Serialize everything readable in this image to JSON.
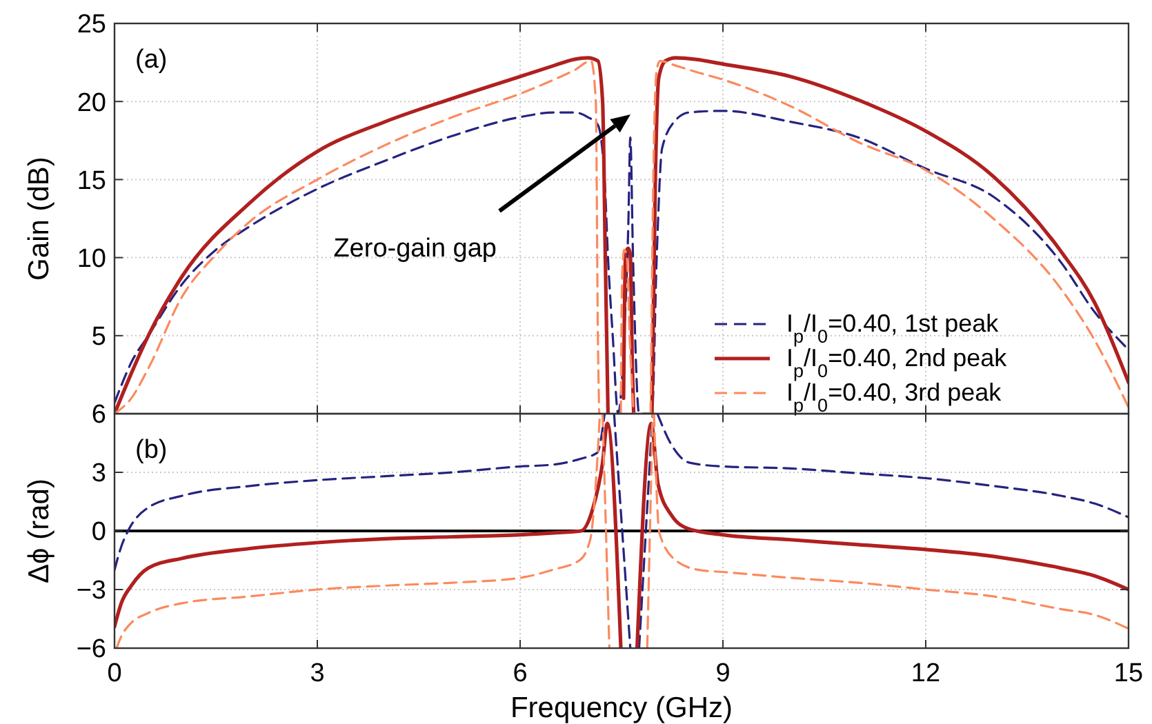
{
  "chart_data": [
    {
      "type": "line",
      "ylabel": "Gain (dB)",
      "xlim": [
        0,
        15
      ],
      "xticks": [
        0,
        3,
        6,
        9,
        12,
        15
      ],
      "ylim": [
        0,
        25
      ],
      "yticks": [
        {
          "value": 0,
          "label": null
        },
        5,
        10,
        15,
        20,
        25
      ],
      "tick_labels": "y",
      "grid": true,
      "legend": "bottom right",
      "annotations": [
        "(a)",
        "Zero-gain gap"
      ],
      "series": [
        {
          "name": "I$_{p}$/I$_{0}$=0.40, 1st peak",
          "color": "#25237f",
          "line_style": "dashed",
          "x": [
            0,
            0.1,
            0.25,
            0.5,
            1,
            1.5,
            2,
            3,
            4,
            5,
            6,
            6.5,
            6.8,
            7.0,
            7.15,
            7.25,
            7.3,
            7.37,
            7.45,
            7.55,
            7.6,
            7.63,
            7.67,
            7.76,
            7.95,
            8.02,
            8.1,
            8.3,
            8.5,
            9,
            10,
            11,
            12,
            13,
            14,
            14.5,
            15
          ],
          "values": [
            0.7,
            1.8,
            3.3,
            5.0,
            8.3,
            10.5,
            12.0,
            14.4,
            16.2,
            17.8,
            19.0,
            19.3,
            19.3,
            19.0,
            18.5,
            15,
            10,
            5,
            0,
            6,
            12,
            17.7,
            10,
            0,
            0,
            10,
            17,
            18.8,
            19.3,
            19.4,
            18.7,
            17.7,
            15.7,
            13.9,
            9.7,
            6.5,
            4.1
          ]
        },
        {
          "name": "I$_{p}$/I$_{0}$=0.40, 2nd peak",
          "color": "#b0201f",
          "line_style": "solid",
          "x": [
            0,
            0.25,
            0.5,
            1,
            2,
            3,
            4,
            5,
            6,
            6.5,
            6.8,
            7.0,
            7.15,
            7.22,
            7.26,
            7.3,
            7.4,
            7.53,
            7.56,
            7.6,
            7.63,
            7.66,
            7.68,
            7.8,
            7.95,
            8.0,
            8.05,
            8.15,
            8.3,
            8.6,
            9,
            10,
            11,
            12,
            13,
            14,
            14.5,
            15
          ],
          "values": [
            0,
            2.6,
            5.0,
            8.8,
            13.5,
            16.8,
            18.7,
            20.2,
            21.6,
            22.3,
            22.7,
            22.8,
            22.6,
            20,
            10,
            0,
            null,
            1,
            10.3,
            10.6,
            10.2,
            3,
            0,
            null,
            0,
            15,
            21.5,
            22.6,
            22.8,
            22.7,
            22.4,
            21.6,
            20.1,
            18.1,
            15.2,
            10.4,
            7.1,
            2.0
          ]
        },
        {
          "name": "I$_{p}$/I$_{0}$=0.40, 3rd peak",
          "color": "#fb8a5e",
          "line_style": "dashed",
          "x": [
            0,
            0.25,
            0.5,
            1,
            1.5,
            2,
            3,
            4,
            5,
            6,
            6.5,
            6.8,
            7.05,
            7.12,
            7.15,
            7.17,
            7.3,
            7.49,
            7.51,
            7.54,
            7.58,
            7.62,
            7.68,
            7.8,
            7.93,
            7.97,
            8.02,
            8.07,
            8.3,
            8.6,
            9,
            10,
            11,
            12,
            13,
            14,
            14.5,
            15
          ],
          "values": [
            0,
            1.0,
            2.9,
            7.5,
            10.2,
            12.3,
            15.0,
            17.2,
            19.0,
            20.5,
            21.4,
            22.0,
            22.6,
            20,
            5,
            0,
            null,
            0,
            9,
            10.5,
            10,
            5,
            0,
            null,
            0,
            15,
            22,
            22.6,
            22.3,
            21.9,
            21.4,
            19.7,
            17.4,
            15.6,
            12.5,
            8.0,
            4.7,
            0.4
          ]
        }
      ]
    },
    {
      "type": "line",
      "xlabel": "Frequency (GHz)",
      "ylabel": "Δϕ (rad)",
      "xlim": [
        0,
        15
      ],
      "xticks": [
        0,
        3,
        6,
        9,
        12,
        15
      ],
      "ylim": [
        -6,
        6
      ],
      "yticks": [
        -6,
        -3,
        0,
        3,
        6
      ],
      "grid": true,
      "annotations": [
        "(b)"
      ],
      "ref_lines": [
        {
          "axis": "y",
          "value": 0,
          "color": "#000000"
        }
      ],
      "series": [
        {
          "color": "#25237f",
          "line_style": "dashed",
          "x": [
            0,
            0.1,
            0.2,
            0.5,
            1,
            2,
            3,
            4,
            5,
            6,
            6.5,
            6.9,
            7.14,
            7.25,
            7.32,
            7.39,
            7.63,
            7.7,
            7.76,
            7.96,
            7.99,
            8.03,
            8.24,
            8.5,
            9,
            10,
            11,
            12,
            13,
            14,
            14.5,
            15
          ],
          "values": [
            -2.0,
            -0.8,
            0,
            1.2,
            1.8,
            2.3,
            2.6,
            2.8,
            3.0,
            3.3,
            3.4,
            3.7,
            4.0,
            6,
            null,
            6,
            -6,
            null,
            -6,
            6,
            null,
            6,
            4.4,
            3.5,
            3.3,
            3.2,
            2.95,
            2.7,
            2.3,
            1.8,
            1.4,
            0.7
          ]
        },
        {
          "color": "#b0201f",
          "line_style": "solid",
          "x": [
            0,
            0.1,
            0.25,
            0.5,
            1,
            2,
            3,
            4,
            5,
            6,
            6.5,
            6.9,
            7.08,
            7.22,
            7.29,
            7.49,
            7.6,
            7.73,
            7.94,
            8.04,
            8.24,
            8.5,
            9,
            10,
            11,
            12,
            13,
            14,
            14.5,
            15
          ],
          "values": [
            -4.9,
            -3.7,
            -2.8,
            -1.9,
            -1.4,
            -0.9,
            -0.6,
            -0.4,
            -0.3,
            -0.2,
            -0.1,
            0,
            1.2,
            3.5,
            5.5,
            -6,
            null,
            -6,
            5.5,
            2.4,
            0.8,
            0.1,
            -0.2,
            -0.45,
            -0.7,
            -0.95,
            -1.3,
            -1.9,
            -2.3,
            -3.0
          ]
        },
        {
          "color": "#fb8a5e",
          "line_style": "dashed",
          "x": [
            0.03,
            0.1,
            0.25,
            0.5,
            1,
            2,
            3,
            4,
            5,
            6,
            6.47,
            6.88,
            7.04,
            7.1,
            7.18,
            7.2,
            7.22,
            7.32,
            7.6,
            7.88,
            7.96,
            7.97,
            7.98,
            8.06,
            8.3,
            8.65,
            9,
            10,
            11,
            12,
            13,
            14,
            14.5,
            15
          ],
          "values": [
            -6,
            -5.4,
            -4.7,
            -4.2,
            -3.7,
            -3.35,
            -3.0,
            -2.8,
            -2.65,
            -2.4,
            -2.0,
            -1.5,
            -0.4,
            1.5,
            6,
            null,
            6,
            -6,
            null,
            -6,
            6,
            null,
            6,
            -0.1,
            -1.5,
            -2.0,
            -2.1,
            -2.4,
            -2.65,
            -3.0,
            -3.35,
            -4.0,
            -4.3,
            -5.0
          ]
        }
      ]
    }
  ]
}
